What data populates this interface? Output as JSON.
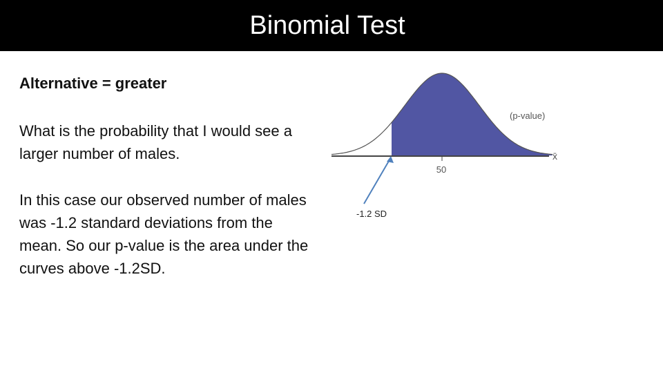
{
  "header": {
    "title": "Binomial Test"
  },
  "body": {
    "heading": "Alternative = greater",
    "paragraphs": [
      "What is the probability that I would see a larger number of males.",
      "In this case our observed number of males was -1.2 standard deviations from the mean.  So our p-value is the area under the curves above -1.2SD."
    ]
  },
  "figure": {
    "region_label": "(p-value)",
    "tick_label": "50",
    "axis_label": "x̄",
    "annotation": "-1.2 SD"
  }
}
